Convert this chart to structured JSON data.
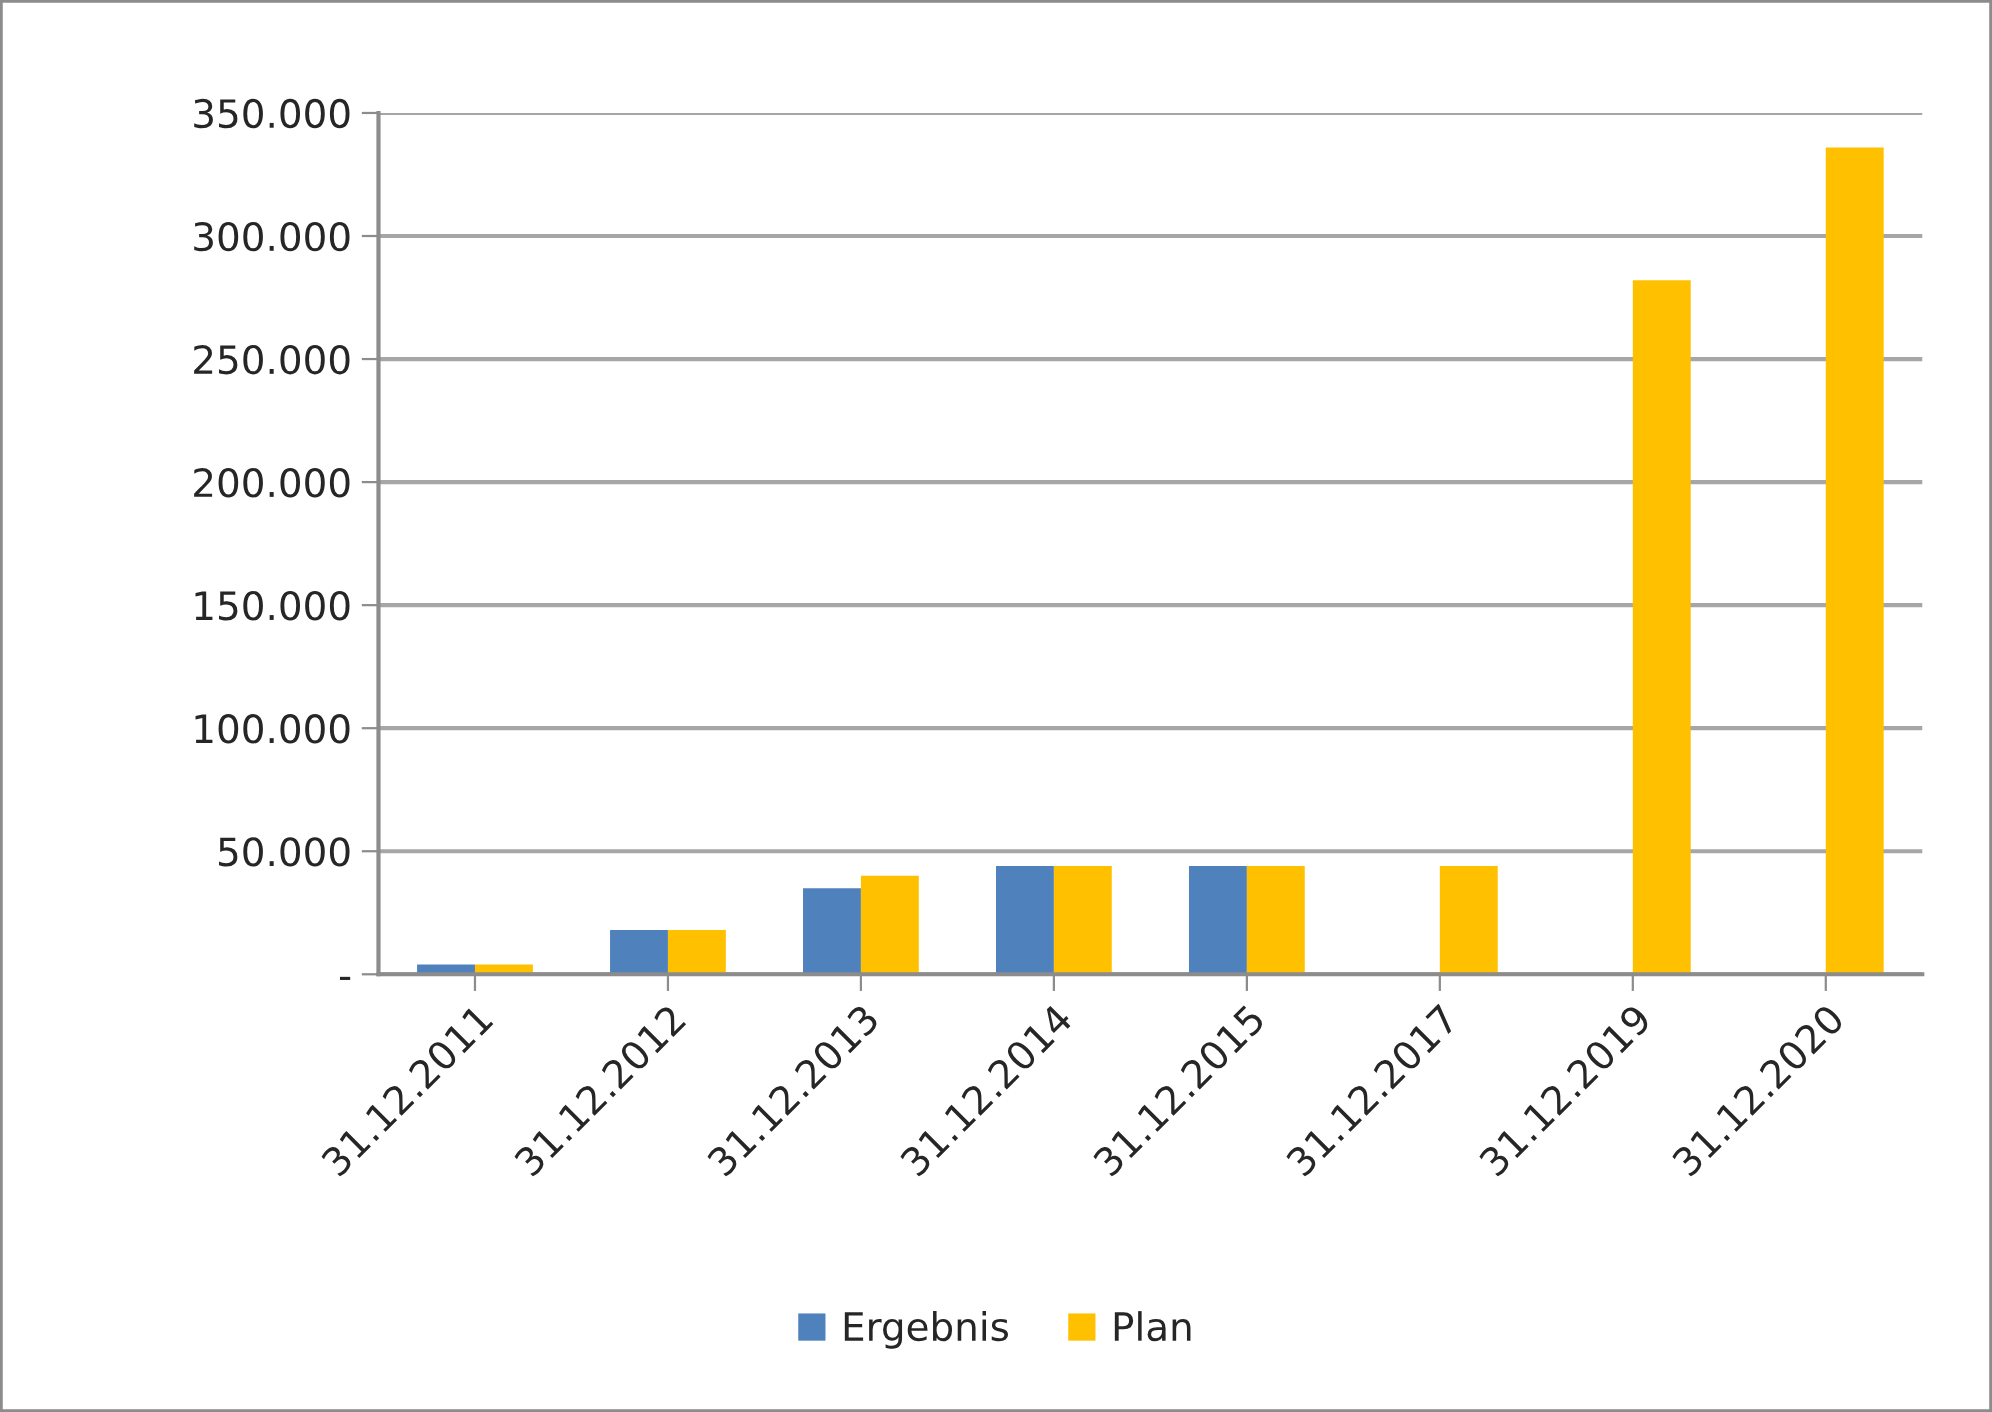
{
  "chart_data": {
    "type": "bar",
    "categories": [
      "31.12.2011",
      "31.12.2012",
      "31.12.2013",
      "31.12.2014",
      "31.12.2015",
      "31.12.2017",
      "31.12.2019",
      "31.12.2020"
    ],
    "series": [
      {
        "name": "Ergebnis",
        "color": "#4f81bd",
        "values": [
          4000,
          18000,
          35000,
          44000,
          44000,
          null,
          null,
          null
        ]
      },
      {
        "name": "Plan",
        "color": "#ffc000",
        "values": [
          4000,
          18000,
          40000,
          44000,
          44000,
          44000,
          282000,
          336000
        ]
      }
    ],
    "ylim": [
      0,
      350000
    ],
    "yticks": [
      {
        "value": 0,
        "label": "-"
      },
      {
        "value": 50000,
        "label": "50.000"
      },
      {
        "value": 100000,
        "label": "100.000"
      },
      {
        "value": 150000,
        "label": "150.000"
      },
      {
        "value": 200000,
        "label": "200.000"
      },
      {
        "value": 250000,
        "label": "250.000"
      },
      {
        "value": 300000,
        "label": "300.000"
      },
      {
        "value": 350000,
        "label": "350.000"
      }
    ],
    "grid": "y",
    "legend": "bottom"
  }
}
